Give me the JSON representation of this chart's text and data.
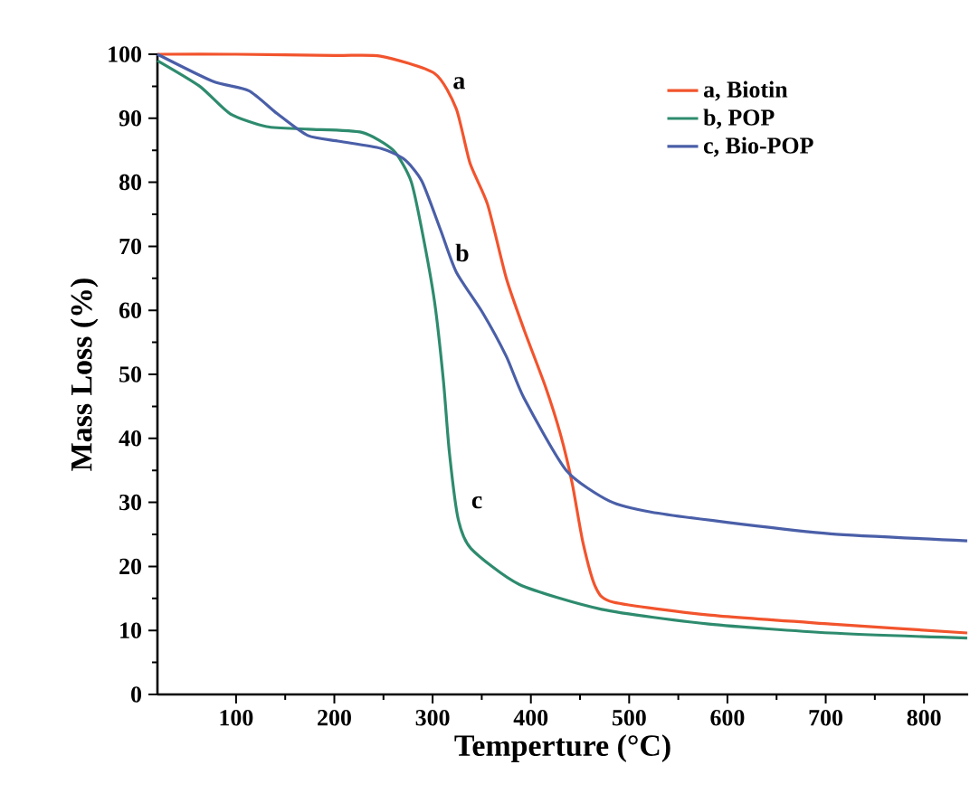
{
  "chart_data": {
    "type": "line",
    "xlabel": "Temperture (°C)",
    "ylabel": "Mass Loss (%)",
    "xlim": [
      20,
      845
    ],
    "ylim": [
      0,
      100
    ],
    "xticks": [
      100,
      200,
      300,
      400,
      500,
      600,
      700,
      800
    ],
    "yticks": [
      0,
      10,
      20,
      30,
      40,
      50,
      60,
      70,
      80,
      90,
      100
    ],
    "grid": false,
    "legend": "top right",
    "marker": "none",
    "line_style": "solid",
    "annotations": [
      "a",
      "b",
      "c"
    ],
    "series": [
      {
        "name": "a, Biotin",
        "color": "#f2542d",
        "x": [
          20,
          100,
          200,
          247,
          302,
          324,
          338,
          356,
          375,
          393,
          415,
          430,
          442,
          453,
          466,
          484,
          581,
          705,
          844
        ],
        "values": [
          100,
          100,
          99.8,
          99.7,
          97,
          91.5,
          83,
          76.5,
          65,
          57,
          48,
          40.7,
          33,
          23.7,
          16.7,
          14.4,
          12.4,
          11,
          9.6
        ]
      },
      {
        "name": "b, POP",
        "color": "#2e8b6e",
        "x": [
          20,
          63,
          94,
          131,
          173,
          228,
          260,
          278,
          289,
          302,
          311,
          317,
          326,
          339,
          388,
          472,
          581,
          705,
          844
        ],
        "values": [
          99,
          95,
          90.7,
          88.7,
          88.3,
          87.8,
          85,
          80.2,
          72.6,
          61.3,
          49,
          37.9,
          27.4,
          22.8,
          17.2,
          13.3,
          11,
          9.6,
          8.8
        ]
      },
      {
        "name": "c, Bio-POP",
        "color": "#4a5fa8",
        "x": [
          20,
          76,
          113,
          142,
          173,
          205,
          247,
          271,
          289,
          308,
          324,
          351,
          375,
          393,
          436,
          480,
          522,
          614,
          705,
          844
        ],
        "values": [
          100,
          95.8,
          94.3,
          90.7,
          87.3,
          86.4,
          85.3,
          83.6,
          80.2,
          72.6,
          66,
          59.6,
          52.8,
          46.3,
          35,
          30.2,
          28.5,
          26.6,
          25.1,
          24
        ]
      }
    ]
  }
}
